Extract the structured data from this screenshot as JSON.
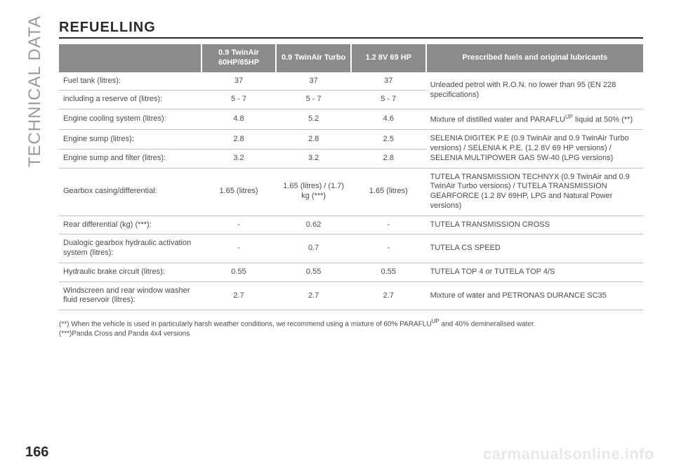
{
  "side_label": "TECHNICAL DATA",
  "title": "REFUELLING",
  "page_number": "166",
  "watermark": "carmanualsonline.info",
  "headers": {
    "col1": "0.9 TwinAir 60HP/65HP",
    "col2": "0.9 TwinAir Turbo",
    "col3": "1.2 8V 69 HP",
    "col4": "Prescribed fuels and original lubricants"
  },
  "rows": {
    "r1": {
      "label": "Fuel tank (litres):",
      "v1": "37",
      "v2": "37",
      "v3": "37"
    },
    "r2": {
      "label": "including a reserve of (litres):",
      "v1": "5 - 7",
      "v2": "5 - 7",
      "v3": "5 - 7"
    },
    "d1": "Unleaded petrol with R.O.N. no lower than 95 (EN 228 specifications)",
    "r3": {
      "label": "Engine cooling system (litres):",
      "v1": "4.8",
      "v2": "5.2",
      "v3": "4.6"
    },
    "d3_a": "Mixture of distilled water and PARAFLU",
    "d3_sup": "UP",
    "d3_b": " liquid at 50% (**)",
    "r4": {
      "label": "Engine sump (litres):",
      "v1": "2.8",
      "v2": "2.8",
      "v3": "2.5"
    },
    "r5": {
      "label": "Engine sump and filter (litres):",
      "v1": "3.2",
      "v2": "3.2",
      "v3": "2.8"
    },
    "d45": "SELENIA DIGITEK P.E (0.9 TwinAir and 0.9 TwinAir Turbo versions) / SELENIA K P.E. (1.2 8V 69 HP versions) / SELENIA MULTIPOWER GAS 5W-40 (LPG versions)",
    "r6": {
      "label": "Gearbox casing/differential:",
      "v1": "1.65 (litres)",
      "v2": "1.65 (litres) / (1.7) kg (***)",
      "v3": "1.65 (litres)"
    },
    "d6": "TUTELA TRANSMISSION TECHNYX (0.9 TwinAir and 0.9 TwinAir Turbo versions) / TUTELA TRANSMISSION GEARFORCE (1.2 8V 69HP, LPG and Natural Power versions)",
    "r7": {
      "label": "Rear differential (kg) (***):",
      "v1": "-",
      "v2": "0.62",
      "v3": "-"
    },
    "d7": "TUTELA TRANSMISSION CROSS",
    "r8": {
      "label": "Dualogic gearbox hydraulic activation system (litres):",
      "v1": "-",
      "v2": "0.7",
      "v3": "-"
    },
    "d8": "TUTELA CS SPEED",
    "r9": {
      "label": "Hydraulic brake circuit (litres):",
      "v1": "0.55",
      "v2": "0.55",
      "v3": "0.55"
    },
    "d9": "TUTELA TOP 4 or TUTELA TOP 4/S",
    "r10": {
      "label": "Windscreen and rear window washer fluid reservoir (litres):",
      "v1": "2.7",
      "v2": "2.7",
      "v3": "2.7"
    },
    "d10": "Mixture of water and PETRONAS DURANCE SC35"
  },
  "footnotes": {
    "f1_a": "(**) When the vehicle is used in particularly harsh weather conditions, we recommend using a mixture of 60% PARAFLU",
    "f1_sup": "UP",
    "f1_b": " and 40% demineralised water.",
    "f2": "(***)Panda Cross and Panda 4x4 versions"
  }
}
